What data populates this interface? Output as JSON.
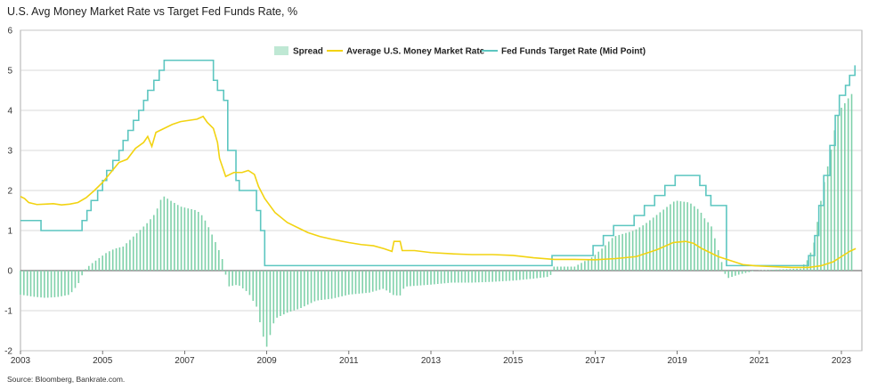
{
  "title": "U.S. Avg Money Market Rate vs Target Fed Funds Rate, %",
  "source": "Source: Bloomberg, Bankrate.com.",
  "colors": {
    "spread": "#7fd1aa",
    "money_market": "#f2d311",
    "fed_funds": "#5cc6c0",
    "gridline": "#cccccc",
    "axis": "#333333"
  },
  "chart_data": {
    "type": "line",
    "title": "U.S. Avg Money Market Rate vs Target Fed Funds Rate, %",
    "xlabel": "",
    "ylabel": "",
    "xlim": [
      2003,
      2023.5
    ],
    "ylim": [
      -2,
      6
    ],
    "x_ticks": [
      "2003",
      "2005",
      "2007",
      "2009",
      "2011",
      "2013",
      "2015",
      "2017",
      "2019",
      "2021",
      "2023"
    ],
    "y_ticks": [
      "-2",
      "-1",
      "0",
      "1",
      "2",
      "3",
      "4",
      "5",
      "6"
    ],
    "grid": "horizontal",
    "legend_position": "top-center",
    "series": [
      {
        "name": "Fed Funds Target Rate (Mid Point)",
        "style": "step-line",
        "points": [
          [
            2003.0,
            1.25
          ],
          [
            2003.25,
            1.25
          ],
          [
            2003.5,
            1.0
          ],
          [
            2004.5,
            1.25
          ],
          [
            2004.62,
            1.5
          ],
          [
            2004.72,
            1.75
          ],
          [
            2004.88,
            2.0
          ],
          [
            2005.0,
            2.25
          ],
          [
            2005.1,
            2.5
          ],
          [
            2005.25,
            2.75
          ],
          [
            2005.4,
            3.0
          ],
          [
            2005.5,
            3.25
          ],
          [
            2005.62,
            3.5
          ],
          [
            2005.75,
            3.75
          ],
          [
            2005.88,
            4.0
          ],
          [
            2006.0,
            4.25
          ],
          [
            2006.1,
            4.5
          ],
          [
            2006.25,
            4.75
          ],
          [
            2006.38,
            5.0
          ],
          [
            2006.5,
            5.25
          ],
          [
            2007.4,
            5.25
          ],
          [
            2007.7,
            4.75
          ],
          [
            2007.8,
            4.5
          ],
          [
            2007.95,
            4.25
          ],
          [
            2008.05,
            3.0
          ],
          [
            2008.25,
            2.25
          ],
          [
            2008.33,
            2.0
          ],
          [
            2008.75,
            1.5
          ],
          [
            2008.85,
            1.0
          ],
          [
            2008.95,
            0.125
          ],
          [
            2015.95,
            0.375
          ],
          [
            2016.95,
            0.625
          ],
          [
            2017.2,
            0.875
          ],
          [
            2017.45,
            1.125
          ],
          [
            2017.95,
            1.375
          ],
          [
            2018.2,
            1.625
          ],
          [
            2018.45,
            1.875
          ],
          [
            2018.7,
            2.125
          ],
          [
            2018.95,
            2.375
          ],
          [
            2019.55,
            2.125
          ],
          [
            2019.7,
            1.875
          ],
          [
            2019.82,
            1.625
          ],
          [
            2020.2,
            0.125
          ],
          [
            2022.2,
            0.375
          ],
          [
            2022.35,
            0.875
          ],
          [
            2022.45,
            1.625
          ],
          [
            2022.57,
            2.375
          ],
          [
            2022.72,
            3.125
          ],
          [
            2022.85,
            3.875
          ],
          [
            2022.95,
            4.375
          ],
          [
            2023.1,
            4.625
          ],
          [
            2023.2,
            4.875
          ],
          [
            2023.33,
            5.125
          ]
        ]
      },
      {
        "name": "Average U.S. Money Market Rate",
        "style": "line",
        "points": [
          [
            2003.0,
            1.85
          ],
          [
            2003.1,
            1.8
          ],
          [
            2003.2,
            1.7
          ],
          [
            2003.4,
            1.65
          ],
          [
            2003.6,
            1.66
          ],
          [
            2003.8,
            1.67
          ],
          [
            2004.0,
            1.64
          ],
          [
            2004.2,
            1.66
          ],
          [
            2004.4,
            1.7
          ],
          [
            2004.6,
            1.82
          ],
          [
            2004.8,
            2.0
          ],
          [
            2005.0,
            2.2
          ],
          [
            2005.2,
            2.45
          ],
          [
            2005.4,
            2.7
          ],
          [
            2005.6,
            2.78
          ],
          [
            2005.8,
            3.05
          ],
          [
            2006.0,
            3.2
          ],
          [
            2006.1,
            3.35
          ],
          [
            2006.2,
            3.1
          ],
          [
            2006.3,
            3.45
          ],
          [
            2006.5,
            3.55
          ],
          [
            2006.7,
            3.65
          ],
          [
            2006.9,
            3.72
          ],
          [
            2007.1,
            3.75
          ],
          [
            2007.3,
            3.78
          ],
          [
            2007.45,
            3.85
          ],
          [
            2007.55,
            3.7
          ],
          [
            2007.7,
            3.55
          ],
          [
            2007.8,
            3.2
          ],
          [
            2007.85,
            2.8
          ],
          [
            2007.95,
            2.5
          ],
          [
            2008.0,
            2.35
          ],
          [
            2008.2,
            2.45
          ],
          [
            2008.4,
            2.45
          ],
          [
            2008.55,
            2.5
          ],
          [
            2008.7,
            2.4
          ],
          [
            2008.8,
            2.1
          ],
          [
            2008.95,
            1.8
          ],
          [
            2009.2,
            1.45
          ],
          [
            2009.5,
            1.2
          ],
          [
            2009.8,
            1.05
          ],
          [
            2010.0,
            0.95
          ],
          [
            2010.3,
            0.85
          ],
          [
            2010.6,
            0.78
          ],
          [
            2011.0,
            0.7
          ],
          [
            2011.3,
            0.65
          ],
          [
            2011.6,
            0.62
          ],
          [
            2011.85,
            0.55
          ],
          [
            2012.05,
            0.48
          ],
          [
            2012.1,
            0.73
          ],
          [
            2012.25,
            0.73
          ],
          [
            2012.3,
            0.5
          ],
          [
            2012.6,
            0.5
          ],
          [
            2013.0,
            0.45
          ],
          [
            2013.5,
            0.42
          ],
          [
            2014.0,
            0.4
          ],
          [
            2014.5,
            0.4
          ],
          [
            2015.0,
            0.38
          ],
          [
            2015.5,
            0.32
          ],
          [
            2016.0,
            0.28
          ],
          [
            2016.5,
            0.28
          ],
          [
            2017.0,
            0.27
          ],
          [
            2017.5,
            0.3
          ],
          [
            2018.0,
            0.35
          ],
          [
            2018.5,
            0.52
          ],
          [
            2018.9,
            0.7
          ],
          [
            2019.2,
            0.73
          ],
          [
            2019.4,
            0.68
          ],
          [
            2019.6,
            0.55
          ],
          [
            2019.8,
            0.45
          ],
          [
            2020.0,
            0.35
          ],
          [
            2020.3,
            0.25
          ],
          [
            2020.6,
            0.15
          ],
          [
            2020.9,
            0.12
          ],
          [
            2021.3,
            0.1
          ],
          [
            2021.8,
            0.08
          ],
          [
            2022.2,
            0.08
          ],
          [
            2022.5,
            0.12
          ],
          [
            2022.8,
            0.22
          ],
          [
            2023.0,
            0.35
          ],
          [
            2023.2,
            0.48
          ],
          [
            2023.35,
            0.55
          ]
        ]
      },
      {
        "name": "Spread",
        "style": "bar",
        "points": [
          [
            2003.0,
            -0.6
          ],
          [
            2003.3,
            -0.65
          ],
          [
            2003.6,
            -0.68
          ],
          [
            2003.9,
            -0.66
          ],
          [
            2004.2,
            -0.6
          ],
          [
            2004.4,
            -0.35
          ],
          [
            2004.55,
            0.0
          ],
          [
            2004.7,
            0.15
          ],
          [
            2004.9,
            0.3
          ],
          [
            2005.1,
            0.45
          ],
          [
            2005.3,
            0.55
          ],
          [
            2005.5,
            0.6
          ],
          [
            2005.7,
            0.8
          ],
          [
            2005.9,
            1.0
          ],
          [
            2006.1,
            1.2
          ],
          [
            2006.3,
            1.45
          ],
          [
            2006.4,
            1.75
          ],
          [
            2006.5,
            1.85
          ],
          [
            2006.7,
            1.72
          ],
          [
            2006.9,
            1.6
          ],
          [
            2007.1,
            1.55
          ],
          [
            2007.3,
            1.5
          ],
          [
            2007.45,
            1.35
          ],
          [
            2007.6,
            1.05
          ],
          [
            2007.8,
            0.6
          ],
          [
            2007.95,
            0.2
          ],
          [
            2008.05,
            -0.4
          ],
          [
            2008.3,
            -0.35
          ],
          [
            2008.55,
            -0.55
          ],
          [
            2008.75,
            -0.9
          ],
          [
            2008.9,
            -1.6
          ],
          [
            2009.0,
            -1.9
          ],
          [
            2009.2,
            -1.2
          ],
          [
            2009.5,
            -1.05
          ],
          [
            2009.8,
            -0.95
          ],
          [
            2010.2,
            -0.75
          ],
          [
            2010.6,
            -0.7
          ],
          [
            2011.0,
            -0.6
          ],
          [
            2011.5,
            -0.55
          ],
          [
            2011.85,
            -0.45
          ],
          [
            2012.1,
            -0.62
          ],
          [
            2012.28,
            -0.62
          ],
          [
            2012.35,
            -0.4
          ],
          [
            2013.0,
            -0.35
          ],
          [
            2013.5,
            -0.3
          ],
          [
            2014.0,
            -0.3
          ],
          [
            2014.5,
            -0.28
          ],
          [
            2015.0,
            -0.25
          ],
          [
            2015.5,
            -0.2
          ],
          [
            2015.9,
            -0.15
          ],
          [
            2016.0,
            0.1
          ],
          [
            2016.5,
            0.1
          ],
          [
            2016.95,
            0.35
          ],
          [
            2017.2,
            0.58
          ],
          [
            2017.45,
            0.85
          ],
          [
            2017.95,
            1.0
          ],
          [
            2018.2,
            1.15
          ],
          [
            2018.45,
            1.35
          ],
          [
            2018.7,
            1.55
          ],
          [
            2018.95,
            1.75
          ],
          [
            2019.3,
            1.7
          ],
          [
            2019.55,
            1.5
          ],
          [
            2019.7,
            1.25
          ],
          [
            2019.82,
            1.15
          ],
          [
            2020.2,
            -0.2
          ],
          [
            2020.5,
            -0.1
          ],
          [
            2020.9,
            0.0
          ],
          [
            2021.5,
            0.03
          ],
          [
            2022.0,
            0.05
          ],
          [
            2022.2,
            0.3
          ],
          [
            2022.35,
            0.75
          ],
          [
            2022.45,
            1.45
          ],
          [
            2022.57,
            2.15
          ],
          [
            2022.72,
            2.85
          ],
          [
            2022.85,
            3.6
          ],
          [
            2022.95,
            4.0
          ],
          [
            2023.1,
            4.2
          ],
          [
            2023.2,
            4.35
          ],
          [
            2023.33,
            4.5
          ]
        ]
      }
    ]
  }
}
